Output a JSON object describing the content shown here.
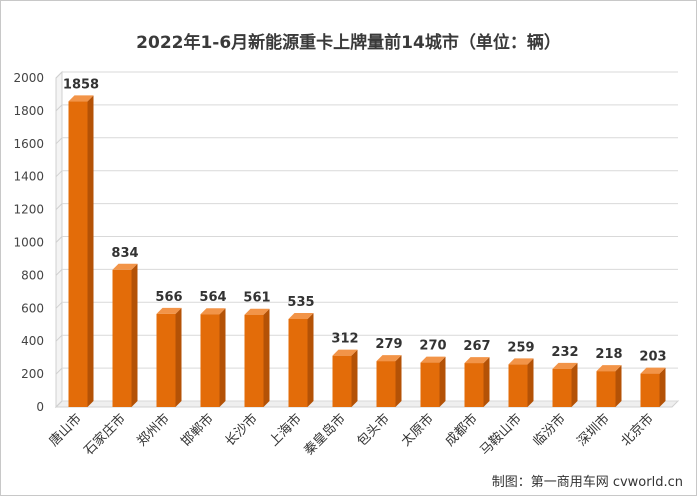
{
  "chart_data": {
    "type": "bar",
    "title": "2022年1-6月新能源重卡上牌量前14城市（单位：辆）",
    "categories": [
      "唐山市",
      "石家庄市",
      "郑州市",
      "邯郸市",
      "长沙市",
      "上海市",
      "秦皇岛市",
      "包头市",
      "太原市",
      "成都市",
      "马鞍山市",
      "临汾市",
      "深圳市",
      "北京市"
    ],
    "values": [
      1858,
      834,
      566,
      564,
      561,
      535,
      312,
      279,
      270,
      267,
      259,
      232,
      218,
      203
    ],
    "ylim": [
      0,
      2000
    ],
    "yticks": [
      0,
      200,
      400,
      600,
      800,
      1000,
      1200,
      1400,
      1600,
      1800,
      2000
    ],
    "grid": true,
    "legend": "none",
    "bar_color": "#e36c09",
    "bar_shade_color": "#b45206",
    "bar_top_color": "#f29448"
  },
  "credit": "制图：第一商用车网 cvworld.cn"
}
